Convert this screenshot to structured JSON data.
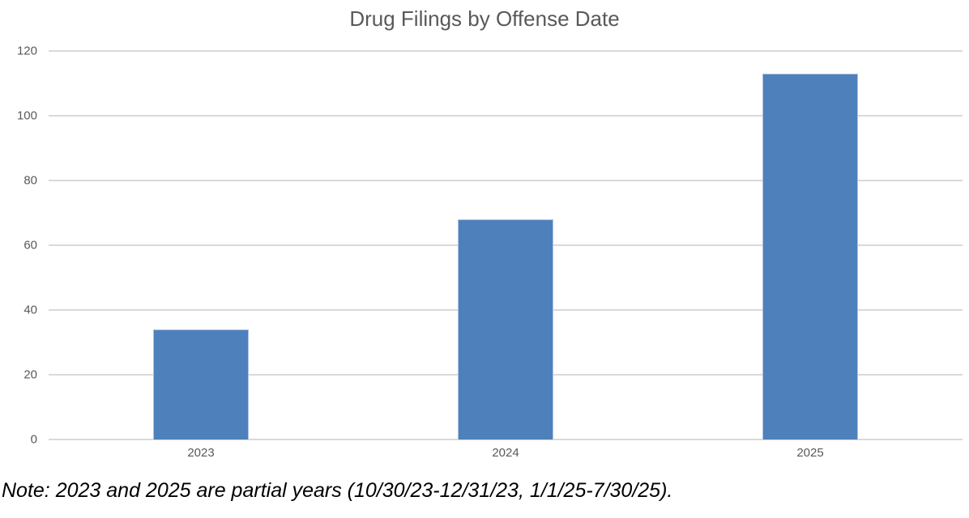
{
  "chart_data": {
    "type": "bar",
    "title": "Drug Filings by Offense Date",
    "categories": [
      "2023",
      "2024",
      "2025"
    ],
    "values": [
      34,
      68,
      113
    ],
    "xlabel": "",
    "ylabel": "",
    "ylim": [
      0,
      120
    ],
    "yticks": [
      0,
      20,
      40,
      60,
      80,
      100,
      120
    ],
    "grid": "horizontal-only",
    "legend": "none",
    "note": "Note: 2023 and 2025 are partial years (10/30/23-12/31/23, 1/1/25-7/30/25).",
    "colors": {
      "bar": "#4E80BC",
      "gridline": "#D9D9D9",
      "axis_label": "#595959",
      "title": "#595959",
      "note": "#000000",
      "background": "#FFFFFF"
    }
  }
}
